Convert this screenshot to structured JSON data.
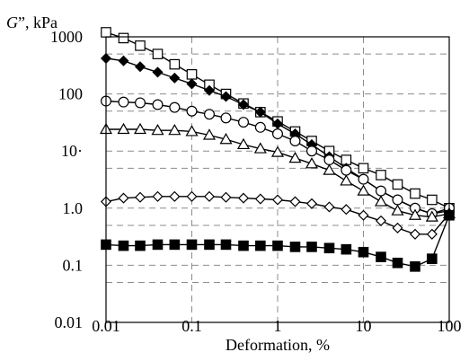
{
  "chart_data": {
    "type": "line",
    "ylabel_symbol": "G",
    "ylabel_rest": "”, kPa",
    "xlabel": "Deformation, %",
    "x_scale": "log",
    "y_scale": "log",
    "xlim": [
      0.01,
      100
    ],
    "ylim": [
      0.01,
      1000
    ],
    "x_ticks": [
      0.01,
      0.1,
      1,
      10,
      100
    ],
    "x_tick_labels": [
      "0.01",
      "0.1",
      "1",
      "10",
      "100"
    ],
    "y_ticks": [
      0.01,
      0.1,
      1,
      10,
      100,
      1000
    ],
    "y_tick_labels": [
      "0.01",
      "0.1",
      "1.0",
      "10·",
      "100",
      "1000"
    ],
    "grid": true,
    "series": [
      {
        "marker": "square-open",
        "x": [
          0.01,
          0.016,
          0.025,
          0.04,
          0.063,
          0.1,
          0.16,
          0.25,
          0.4,
          0.63,
          1,
          1.6,
          2.5,
          4,
          6.3,
          10,
          16,
          25,
          40,
          63,
          100
        ],
        "y": [
          1200,
          950,
          700,
          500,
          330,
          220,
          145,
          100,
          68,
          48,
          33,
          22,
          15,
          10,
          7,
          5,
          3.8,
          2.6,
          1.8,
          1.4,
          1.0
        ]
      },
      {
        "marker": "diamond-filled",
        "x": [
          0.01,
          0.016,
          0.025,
          0.04,
          0.063,
          0.1,
          0.16,
          0.25,
          0.4,
          0.63,
          1,
          1.6,
          2.5,
          4,
          6.3,
          10,
          16,
          25,
          40,
          63,
          100
        ],
        "y": [
          420,
          380,
          300,
          240,
          190,
          150,
          115,
          90,
          65,
          48,
          30,
          20,
          13,
          8,
          5,
          3.2,
          2.0,
          1.4,
          1.0,
          0.8,
          0.9
        ]
      },
      {
        "marker": "circle-open",
        "x": [
          0.01,
          0.016,
          0.025,
          0.04,
          0.063,
          0.1,
          0.16,
          0.25,
          0.4,
          0.63,
          1,
          1.6,
          2.5,
          4,
          6.3,
          10,
          16,
          25,
          40,
          63,
          100
        ],
        "y": [
          75,
          72,
          70,
          65,
          58,
          50,
          44,
          38,
          32,
          26,
          20,
          15,
          10,
          7,
          4.6,
          3.2,
          2.0,
          1.4,
          1.0,
          0.8,
          1.0
        ]
      },
      {
        "marker": "triangle-open",
        "x": [
          0.01,
          0.016,
          0.025,
          0.04,
          0.063,
          0.1,
          0.16,
          0.25,
          0.4,
          0.63,
          1,
          1.6,
          2.5,
          4,
          6.3,
          10,
          16,
          25,
          40,
          63,
          100
        ],
        "y": [
          24,
          24,
          24,
          23,
          23,
          22,
          19,
          16,
          13,
          11,
          9.5,
          7.5,
          6.0,
          4.6,
          3.0,
          2.0,
          1.3,
          0.9,
          0.75,
          0.7,
          0.8
        ]
      },
      {
        "marker": "diamond-open",
        "x": [
          0.01,
          0.016,
          0.025,
          0.04,
          0.063,
          0.1,
          0.16,
          0.25,
          0.4,
          0.63,
          1,
          1.6,
          2.5,
          4,
          6.3,
          10,
          16,
          25,
          40,
          63,
          100
        ],
        "y": [
          1.3,
          1.5,
          1.55,
          1.6,
          1.6,
          1.6,
          1.6,
          1.55,
          1.5,
          1.45,
          1.4,
          1.3,
          1.2,
          1.05,
          0.95,
          0.75,
          0.6,
          0.45,
          0.35,
          0.35,
          0.8
        ]
      },
      {
        "marker": "square-filled",
        "x": [
          0.01,
          0.016,
          0.025,
          0.04,
          0.063,
          0.1,
          0.16,
          0.25,
          0.4,
          0.63,
          1,
          1.6,
          2.5,
          4,
          6.3,
          10,
          16,
          25,
          40,
          63,
          100
        ],
        "y": [
          0.23,
          0.22,
          0.22,
          0.23,
          0.23,
          0.23,
          0.23,
          0.23,
          0.22,
          0.22,
          0.22,
          0.21,
          0.21,
          0.2,
          0.19,
          0.17,
          0.14,
          0.11,
          0.095,
          0.13,
          0.75
        ]
      }
    ]
  }
}
